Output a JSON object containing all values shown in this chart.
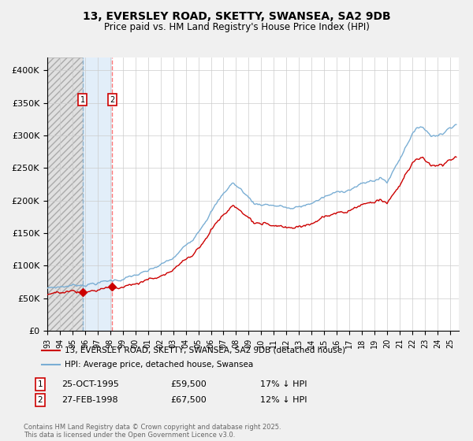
{
  "title1": "13, EVERSLEY ROAD, SKETTY, SWANSEA, SA2 9DB",
  "title2": "Price paid vs. HM Land Registry's House Price Index (HPI)",
  "ylim": [
    0,
    420000
  ],
  "yticks": [
    0,
    50000,
    100000,
    150000,
    200000,
    250000,
    300000,
    350000,
    400000
  ],
  "ytick_labels": [
    "£0",
    "£50K",
    "£100K",
    "£150K",
    "£200K",
    "£250K",
    "£300K",
    "£350K",
    "£400K"
  ],
  "purchase1_price": 59500,
  "purchase1_year": 1995.81,
  "purchase2_price": 67500,
  "purchase2_year": 1998.15,
  "legend_label_red": "13, EVERSLEY ROAD, SKETTY, SWANSEA, SA2 9DB (detached house)",
  "legend_label_blue": "HPI: Average price, detached house, Swansea",
  "footer": "Contains HM Land Registry data © Crown copyright and database right 2025.\nThis data is licensed under the Open Government Licence v3.0.",
  "red_color": "#cc0000",
  "blue_color": "#7aaed4",
  "grid_color": "#cccccc",
  "fig_bg": "#f0f0f0",
  "plot_bg": "#ffffff"
}
